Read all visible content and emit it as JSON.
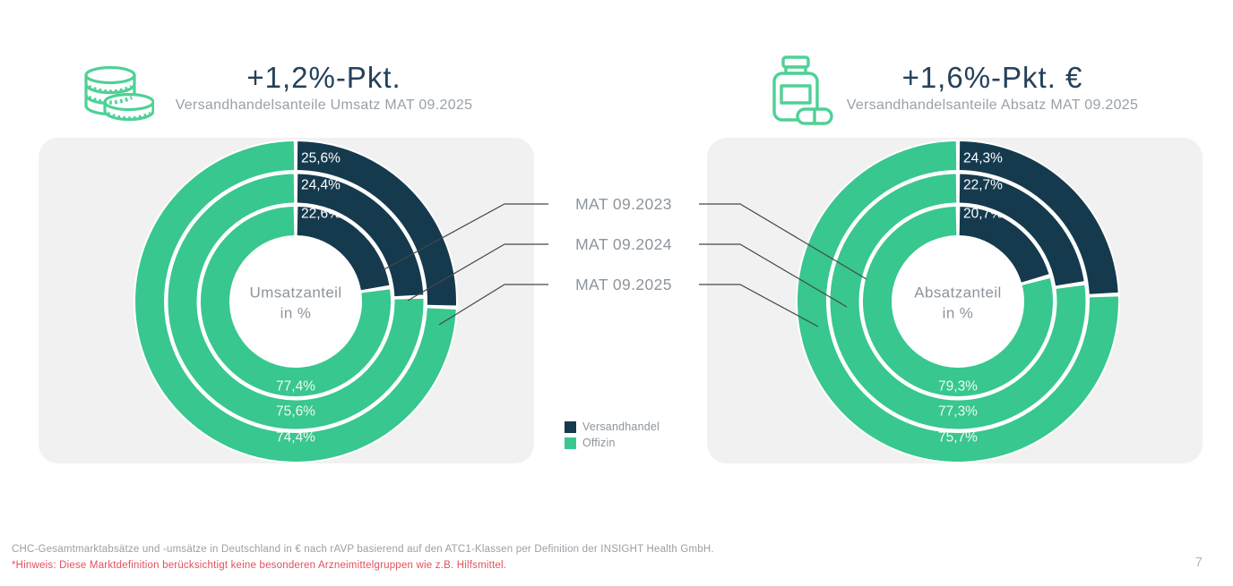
{
  "colors": {
    "versandhandel": "#153a4e",
    "offizin": "#38c78e",
    "panel_bg": "#f1f1f2",
    "icon_green": "#4ed195",
    "title": "#24415a",
    "subtitle": "#9aa1a8",
    "gray_text": "#8d959d",
    "connector": "#43474b",
    "footnote": "#9aa0a6",
    "warning": "#e2505b",
    "page_number": "#b4b8bc",
    "ring_label_dark_text": "#ffffff",
    "ring_label_green_text": "#eefaf4"
  },
  "chart_data": [
    {
      "type": "pie",
      "variant": "concentric_donut",
      "icon": "coins-icon",
      "title": "+1,2%-Pkt.",
      "subtitle": "Versandhandelsanteile Umsatz MAT 09.2025",
      "center_label_lines": [
        "Umsatzanteil",
        "in %"
      ],
      "series_names": [
        "Versandhandel",
        "Offizin"
      ],
      "rings": [
        {
          "period": "MAT 09.2023",
          "ring": "inner",
          "versandhandel_pct": 22.6,
          "offizin_pct": 77.4,
          "versandhandel_label": "22,6%",
          "offizin_label": "77,4%"
        },
        {
          "period": "MAT 09.2024",
          "ring": "middle",
          "versandhandel_pct": 24.4,
          "offizin_pct": 75.6,
          "versandhandel_label": "24,4%",
          "offizin_label": "75,6%"
        },
        {
          "period": "MAT 09.2025",
          "ring": "outer",
          "versandhandel_pct": 25.6,
          "offizin_pct": 74.4,
          "versandhandel_label": "25,6%",
          "offizin_label": "74,4%"
        }
      ]
    },
    {
      "type": "pie",
      "variant": "concentric_donut",
      "icon": "medicine-bottle-icon",
      "title": "+1,6%-Pkt. €",
      "subtitle": "Versandhandelsanteile Absatz MAT 09.2025",
      "center_label_lines": [
        "Absatzanteil",
        "in %"
      ],
      "series_names": [
        "Versandhandel",
        "Offizin"
      ],
      "rings": [
        {
          "period": "MAT 09.2023",
          "ring": "inner",
          "versandhandel_pct": 20.7,
          "offizin_pct": 79.3,
          "versandhandel_label": "20,7%",
          "offizin_label": "79,3%"
        },
        {
          "period": "MAT 09.2024",
          "ring": "middle",
          "versandhandel_pct": 22.7,
          "offizin_pct": 77.3,
          "versandhandel_label": "22,7%",
          "offizin_label": "77,3%"
        },
        {
          "period": "MAT 09.2025",
          "ring": "outer",
          "versandhandel_pct": 24.3,
          "offizin_pct": 75.7,
          "versandhandel_label": "24,3%",
          "offizin_label": "75,7%"
        }
      ]
    }
  ],
  "connector_labels": [
    "MAT 09.2023",
    "MAT 09.2024",
    "MAT 09.2025"
  ],
  "legend": {
    "items": [
      {
        "label": "Versandhandel",
        "color": "#153a4e"
      },
      {
        "label": "Offizin",
        "color": "#38c78e"
      }
    ]
  },
  "footer": {
    "source_line": "CHC-Gesamtmarktabsätze und -umsätze in Deutschland in € nach rAVP basierend auf den ATC1-Klassen per Definition der INSIGHT Health GmbH.",
    "warning_line": "*Hinweis: Diese Marktdefinition berücksichtigt keine besonderen Arzneimittelgruppen wie z.B. Hilfsmittel.",
    "page_number": "7"
  }
}
